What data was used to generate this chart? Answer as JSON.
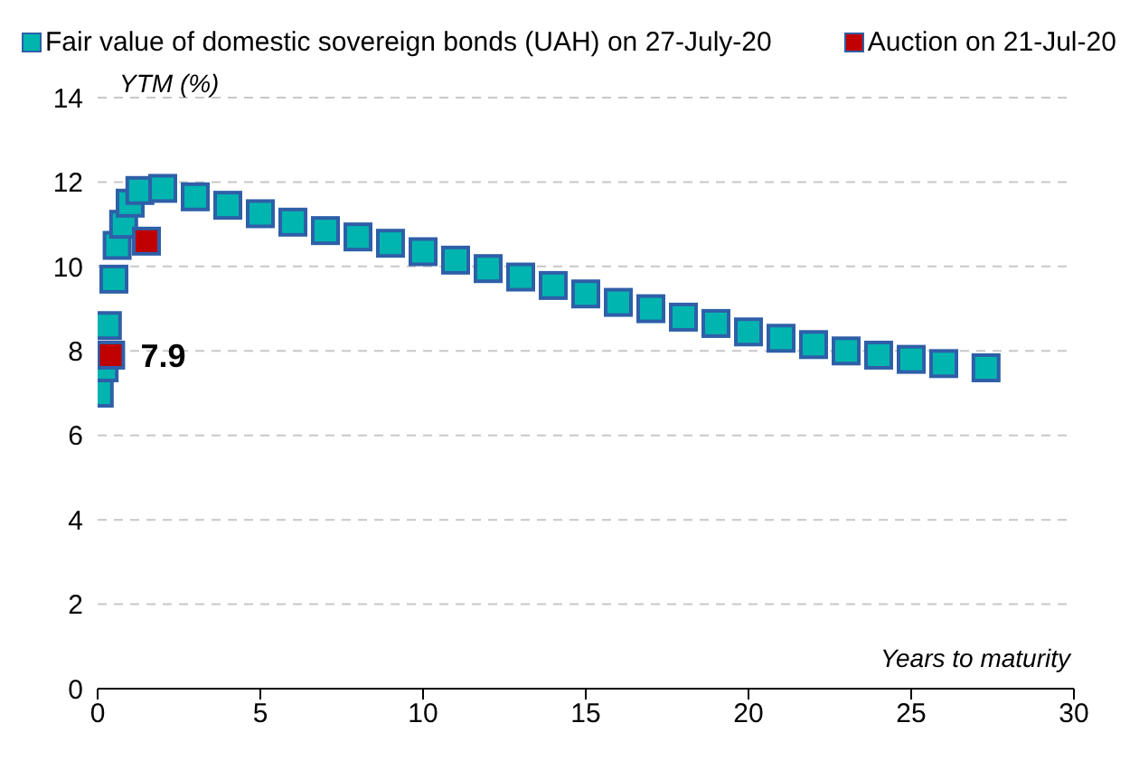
{
  "chart_data": {
    "type": "scatter",
    "xlabel": "Years to maturity",
    "ylabel": "YTM (%)",
    "xlim": [
      0,
      30
    ],
    "xticks": [
      0,
      5,
      10,
      15,
      20,
      25,
      30
    ],
    "ylim": [
      0,
      14
    ],
    "yticks": [
      0,
      2,
      4,
      6,
      8,
      10,
      12,
      14
    ],
    "grid": "y",
    "legend": "top left",
    "marker": "square",
    "series": [
      {
        "name": "Fair value of domestic sovereign bonds (UAH) on 27-July-20",
        "color": "#00b5b0",
        "x": [
          0.05,
          0.2,
          0.3,
          0.5,
          0.6,
          0.8,
          1.0,
          1.3,
          2,
          3,
          4,
          5,
          6,
          7,
          8,
          9,
          10,
          11,
          12,
          13,
          14,
          15,
          16,
          17,
          18,
          19,
          20,
          21,
          22,
          23,
          24,
          25,
          26,
          27.3
        ],
        "values": [
          7.0,
          7.6,
          8.6,
          9.7,
          10.5,
          11.0,
          11.5,
          11.8,
          11.85,
          11.65,
          11.45,
          11.25,
          11.05,
          10.85,
          10.7,
          10.55,
          10.35,
          10.15,
          9.95,
          9.75,
          9.55,
          9.35,
          9.15,
          9.0,
          8.8,
          8.65,
          8.45,
          8.3,
          8.15,
          8.0,
          7.9,
          7.8,
          7.7,
          7.6
        ]
      },
      {
        "name": "Auction on 21-Jul-20",
        "color": "#c00000",
        "x": [
          0.4,
          1.5
        ],
        "values": [
          7.9,
          10.6
        ],
        "value_labels": [
          "7.9",
          null
        ]
      }
    ]
  }
}
